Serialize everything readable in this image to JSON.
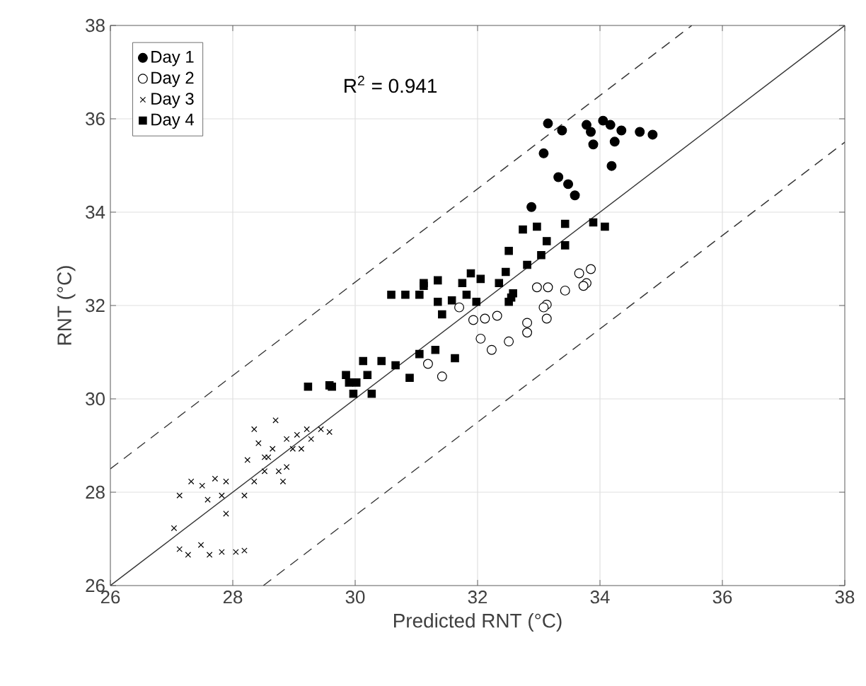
{
  "chart_data": {
    "type": "scatter",
    "xlabel": "Predicted RNT (°C)",
    "ylabel": "RNT (°C)",
    "xlim": [
      26,
      38
    ],
    "ylim": [
      26,
      38
    ],
    "xticks": [
      26,
      28,
      30,
      32,
      34,
      36,
      38
    ],
    "yticks": [
      26,
      28,
      30,
      32,
      34,
      36,
      38
    ],
    "grid": true,
    "legend": "top left",
    "annotations": [
      "R$^{2}$ = 0.941"
    ],
    "series": [
      {
        "name": "Day 1",
        "color": "#000000",
        "marker": "circle",
        "x": [
          33.15,
          33.38,
          33.78,
          33.85,
          34.17,
          34.35,
          33.89,
          34.24,
          34.65,
          34.86,
          33.08,
          34.19,
          33.32,
          33.48,
          33.59,
          32.88,
          34.05
        ],
        "values": [
          35.9,
          35.75,
          35.87,
          35.72,
          35.87,
          35.75,
          35.45,
          35.51,
          35.72,
          35.66,
          35.26,
          34.99,
          34.75,
          34.6,
          34.36,
          34.11,
          35.96
        ]
      },
      {
        "name": "Day 2",
        "color": "#000000",
        "marker": "circle",
        "x": [
          33.85,
          33.66,
          33.78,
          33.43,
          33.15,
          33.13,
          32.97,
          33.73,
          33.08,
          33.13,
          32.81,
          32.81,
          32.51,
          32.23,
          32.05,
          31.93,
          32.12,
          32.32,
          31.7,
          31.19,
          31.42
        ],
        "values": [
          32.78,
          32.69,
          32.48,
          32.32,
          32.39,
          32.02,
          32.39,
          32.42,
          31.96,
          31.72,
          31.63,
          31.42,
          31.23,
          31.05,
          31.29,
          31.69,
          31.72,
          31.78,
          31.96,
          30.75,
          30.48
        ]
      },
      {
        "name": "Day 3",
        "color": "#000000",
        "marker": "cross",
        "x": [
          27.04,
          27.13,
          27.27,
          27.48,
          27.62,
          27.82,
          28.05,
          28.19,
          27.13,
          27.32,
          27.5,
          27.71,
          27.89,
          27.82,
          27.89,
          27.59,
          28.19,
          28.24,
          28.35,
          28.52,
          28.58,
          28.65,
          28.42,
          28.35,
          28.52,
          28.75,
          28.88,
          28.82,
          28.98,
          29.05,
          29.21,
          29.44,
          29.58,
          28.7,
          28.88,
          29.12,
          29.28
        ],
        "values": [
          27.23,
          26.78,
          26.66,
          26.87,
          26.66,
          26.72,
          26.72,
          26.75,
          27.93,
          28.23,
          28.14,
          28.29,
          28.23,
          27.93,
          27.54,
          27.84,
          27.93,
          28.69,
          28.23,
          28.45,
          28.75,
          28.93,
          29.05,
          29.35,
          28.75,
          28.45,
          28.54,
          28.23,
          28.93,
          29.23,
          29.35,
          29.35,
          29.29,
          29.54,
          29.14,
          28.93,
          29.14
        ]
      },
      {
        "name": "Day 4",
        "color": "#000000",
        "marker": "square",
        "x": [
          34.08,
          33.89,
          33.43,
          32.97,
          32.74,
          33.13,
          33.43,
          33.04,
          32.51,
          32.81,
          32.46,
          32.05,
          31.89,
          31.75,
          31.35,
          31.12,
          32.35,
          32.58,
          32.51,
          31.58,
          30.59,
          30.82,
          31.05,
          31.12,
          31.35,
          31.42,
          31.82,
          31.98,
          32.55,
          31.31,
          31.05,
          31.63,
          30.13,
          30.43,
          30.66,
          30.2,
          29.85,
          30.02,
          29.62,
          29.23,
          30.27,
          30.89,
          29.97,
          29.58,
          29.9
        ],
        "values": [
          33.69,
          33.78,
          33.75,
          33.69,
          33.63,
          33.38,
          33.29,
          33.08,
          33.17,
          32.87,
          32.72,
          32.57,
          32.69,
          32.48,
          32.54,
          32.48,
          32.48,
          32.26,
          32.08,
          32.11,
          32.23,
          32.23,
          32.23,
          32.42,
          32.08,
          31.81,
          32.23,
          32.08,
          32.17,
          31.05,
          30.96,
          30.87,
          30.81,
          30.81,
          30.72,
          30.51,
          30.51,
          30.35,
          30.26,
          30.26,
          30.11,
          30.45,
          30.11,
          30.29,
          30.35
        ]
      },
      {
        "type": "line",
        "color": "#333333",
        "line_style": "solid",
        "marker": "none",
        "x": [
          26,
          38
        ],
        "values": [
          26,
          38
        ]
      },
      {
        "type": "line",
        "color": "#333333",
        "line_style": "dashed",
        "marker": "none",
        "x": [
          26,
          35.5
        ],
        "values": [
          28.5,
          38
        ]
      },
      {
        "type": "line",
        "color": "#333333",
        "line_style": "dashed",
        "marker": "none",
        "x": [
          28.5,
          38
        ],
        "values": [
          26,
          35.5
        ]
      }
    ]
  }
}
